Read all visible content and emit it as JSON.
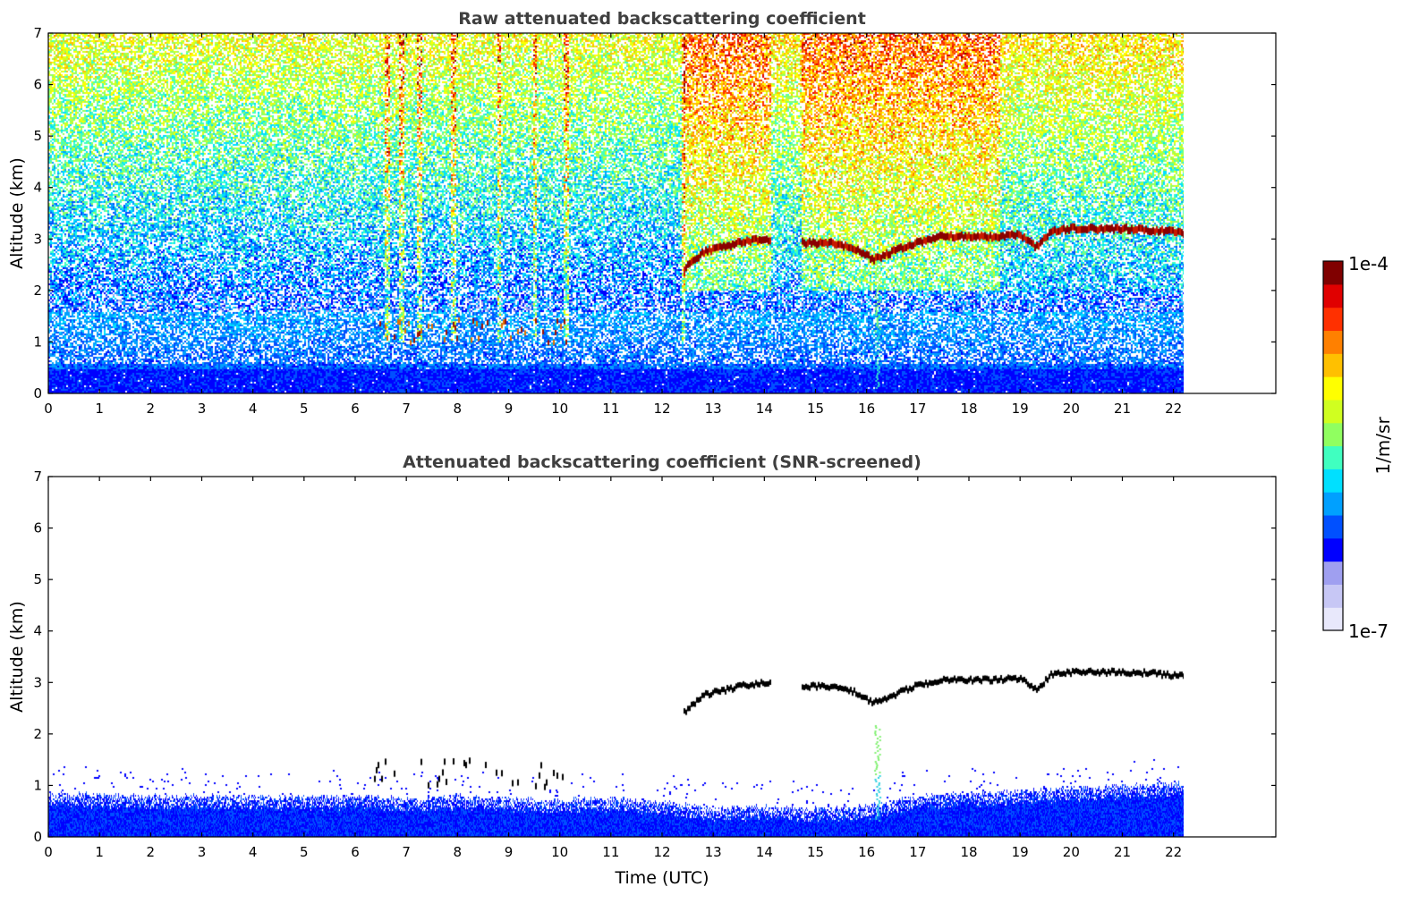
{
  "chart_data": [
    {
      "type": "heatmap",
      "title": "Raw attenuated backscattering coefficient",
      "xlabel": "",
      "ylabel": "Altitude (km)",
      "xlim": [
        0,
        24
      ],
      "ylim": [
        0,
        7
      ],
      "xticks": [
        "0",
        "1",
        "2",
        "3",
        "4",
        "5",
        "6",
        "7",
        "8",
        "9",
        "10",
        "11",
        "12",
        "13",
        "14",
        "15",
        "16",
        "17",
        "18",
        "19",
        "20",
        "21",
        "22"
      ],
      "yticks": [
        "0",
        "1",
        "2",
        "3",
        "4",
        "5",
        "6",
        "7"
      ],
      "data_end_time": 22.2,
      "cloud_layer": {
        "points": [
          [
            12.4,
            2.4
          ],
          [
            12.8,
            2.75
          ],
          [
            13.2,
            2.85
          ],
          [
            13.6,
            2.95
          ],
          [
            14.1,
            3.0
          ],
          [
            14.7,
            2.93
          ],
          [
            15.3,
            2.92
          ],
          [
            15.8,
            2.8
          ],
          [
            16.1,
            2.6
          ],
          [
            16.5,
            2.75
          ],
          [
            17.0,
            2.95
          ],
          [
            17.5,
            3.05
          ],
          [
            18.0,
            3.05
          ],
          [
            18.5,
            3.05
          ],
          [
            19.0,
            3.08
          ],
          [
            19.3,
            2.85
          ],
          [
            19.6,
            3.15
          ],
          [
            20.0,
            3.2
          ],
          [
            20.5,
            3.2
          ],
          [
            21.0,
            3.2
          ],
          [
            21.5,
            3.18
          ],
          [
            22.2,
            3.12
          ]
        ],
        "gap": [
          14.1,
          14.7
        ]
      },
      "noise_columns": [
        6.6,
        6.9,
        7.25,
        7.9,
        8.8,
        9.5,
        10.1,
        12.4
      ]
    },
    {
      "type": "heatmap",
      "title": "Attenuated backscattering coefficient (SNR-screened)",
      "xlabel": "Time (UTC)",
      "ylabel": "Altitude (km)",
      "xlim": [
        0,
        24
      ],
      "ylim": [
        0,
        7
      ],
      "xticks": [
        "0",
        "1",
        "2",
        "3",
        "4",
        "5",
        "6",
        "7",
        "8",
        "9",
        "10",
        "11",
        "12",
        "13",
        "14",
        "15",
        "16",
        "17",
        "18",
        "19",
        "20",
        "21",
        "22"
      ],
      "yticks": [
        "0",
        "1",
        "2",
        "3",
        "4",
        "5",
        "6",
        "7"
      ],
      "data_end_time": 22.2,
      "boundary_layer_top": [
        [
          0,
          0.85
        ],
        [
          2,
          0.8
        ],
        [
          4,
          0.8
        ],
        [
          5,
          0.78
        ],
        [
          6,
          0.8
        ],
        [
          7,
          0.75
        ],
        [
          8,
          0.8
        ],
        [
          9,
          0.75
        ],
        [
          10,
          0.72
        ],
        [
          11,
          0.75
        ],
        [
          12,
          0.7
        ],
        [
          13,
          0.55
        ],
        [
          14,
          0.6
        ],
        [
          15,
          0.55
        ],
        [
          16,
          0.6
        ],
        [
          17,
          0.8
        ],
        [
          18,
          0.85
        ],
        [
          19,
          0.9
        ],
        [
          20,
          0.95
        ],
        [
          21,
          1.0
        ],
        [
          22.2,
          1.05
        ]
      ]
    }
  ],
  "colorbar": {
    "label": "1/m/sr",
    "max_label": "1e-4",
    "min_label": "1e-7",
    "colors": [
      "#e8e8fb",
      "#c7c7f5",
      "#9f9ff0",
      "#0000ff",
      "#0050ff",
      "#00a0ff",
      "#00e0ff",
      "#40ffc0",
      "#90ff60",
      "#d0ff20",
      "#ffff00",
      "#ffc000",
      "#ff8000",
      "#ff3000",
      "#e00000",
      "#800000"
    ]
  }
}
